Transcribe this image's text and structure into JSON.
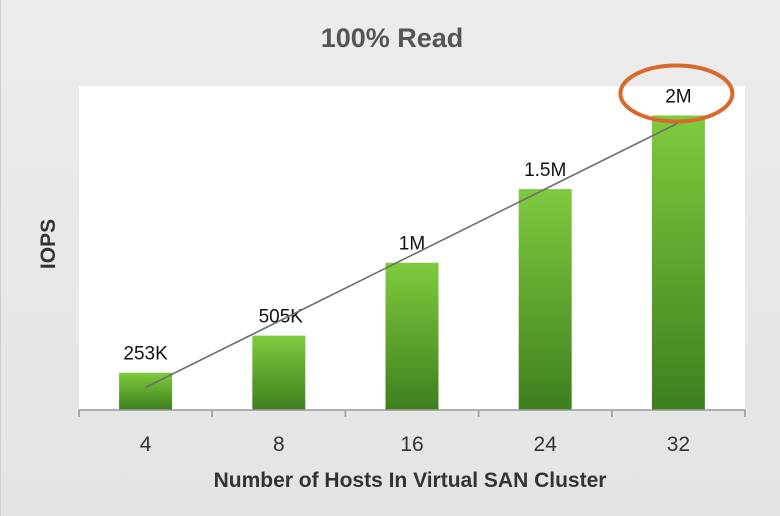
{
  "chart_data": {
    "type": "bar",
    "title": "100% Read",
    "xlabel": "Number of Hosts In Virtual SAN Cluster",
    "ylabel": "IOPS",
    "categories": [
      "4",
      "8",
      "16",
      "24",
      "32"
    ],
    "values": [
      253000,
      505000,
      1000000,
      1500000,
      2000000
    ],
    "data_labels": [
      "253K",
      "505K",
      "1M",
      "1.5M",
      "2M"
    ],
    "ylim": [
      0,
      2200000
    ],
    "grid": false,
    "legend": "none",
    "trendline": true,
    "highlight": {
      "category": "32",
      "shape": "ellipse"
    },
    "colors": {
      "bar_top": "#7ecb3e",
      "bar_bottom": "#3e7f1e",
      "trendline": "#6e6e6e",
      "highlight": "#d9692a",
      "plot_bg": "#ffffff",
      "axis": "#999999"
    }
  }
}
